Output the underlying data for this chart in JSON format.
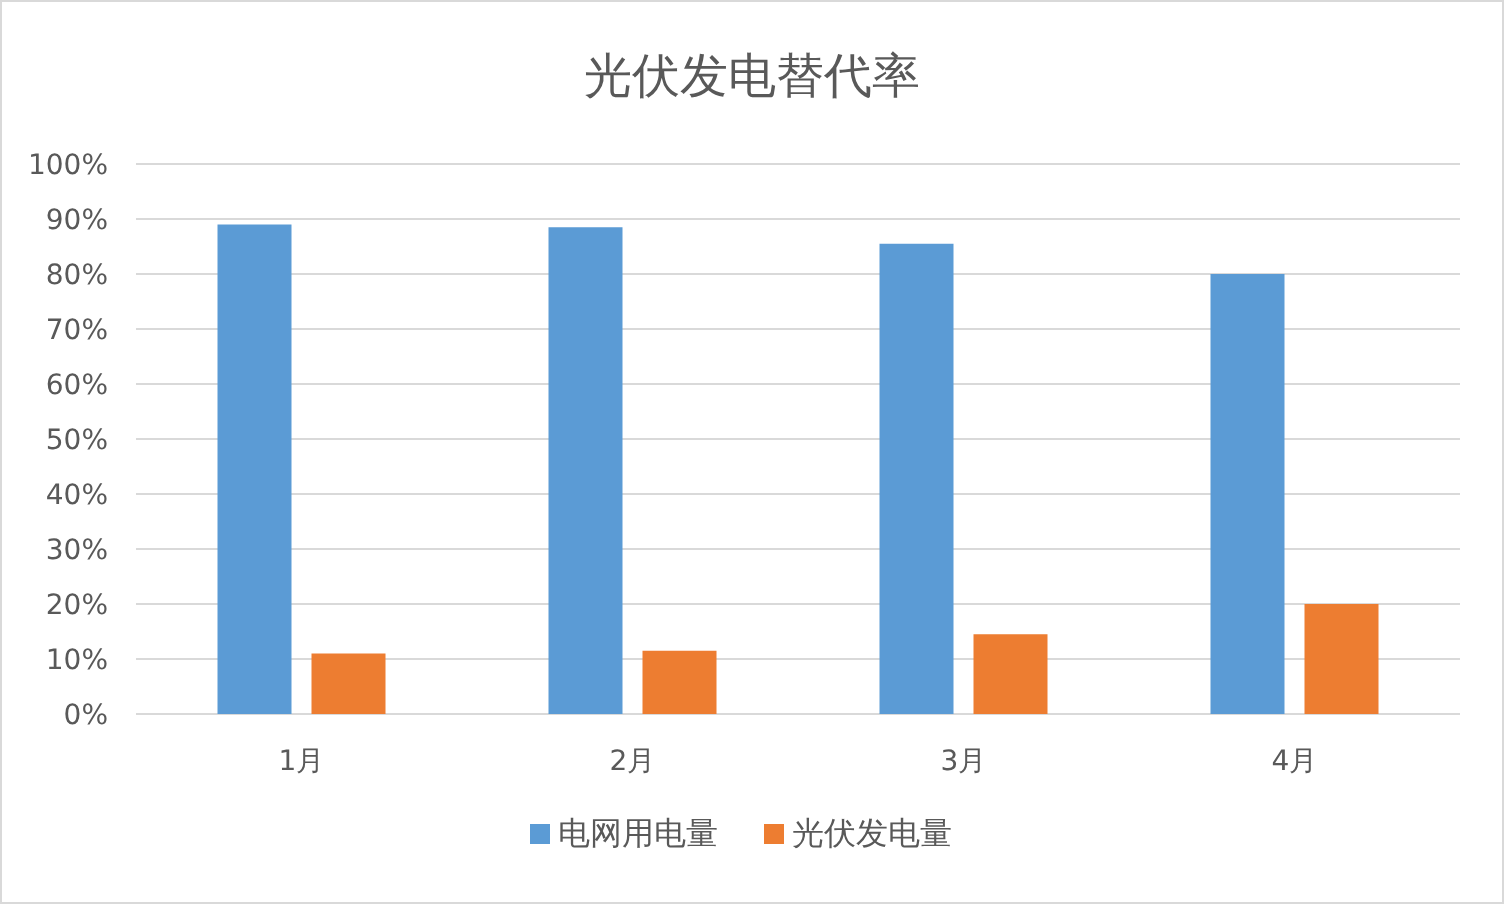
{
  "chart_data": {
    "type": "bar",
    "title": "光伏发电替代率",
    "categories": [
      "1月",
      "2月",
      "3月",
      "4月"
    ],
    "series": [
      {
        "name": "电网用电量",
        "color": "#5b9bd5",
        "values": [
          89,
          88.5,
          85.5,
          80
        ]
      },
      {
        "name": "光伏发电量",
        "color": "#ed7d31",
        "values": [
          11,
          11.5,
          14.5,
          20
        ]
      }
    ],
    "ylim": [
      0,
      100
    ],
    "yticks": [
      {
        "value": 0,
        "label": "0%"
      },
      {
        "value": 10,
        "label": "10%"
      },
      {
        "value": 20,
        "label": "20%"
      },
      {
        "value": 30,
        "label": "30%"
      },
      {
        "value": 40,
        "label": "40%"
      },
      {
        "value": 50,
        "label": "50%"
      },
      {
        "value": 60,
        "label": "60%"
      },
      {
        "value": 70,
        "label": "70%"
      },
      {
        "value": 80,
        "label": "80%"
      },
      {
        "value": 90,
        "label": "90%"
      },
      {
        "value": 100,
        "label": "100%"
      }
    ],
    "grid": "y",
    "legend": "bottom"
  }
}
